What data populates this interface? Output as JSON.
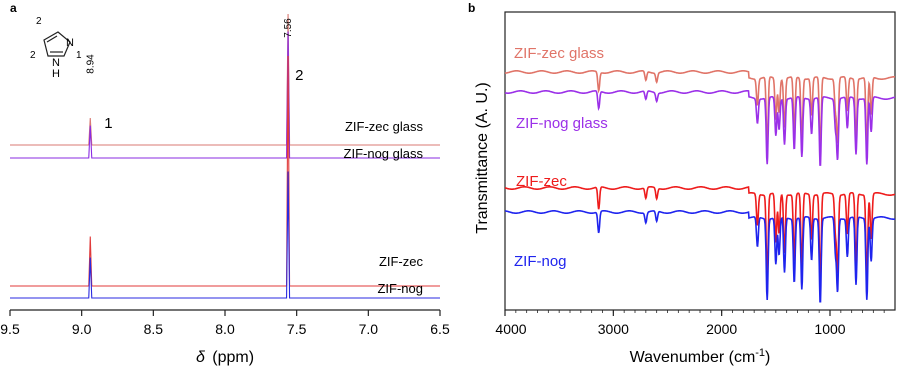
{
  "panels": {
    "a_label": "a",
    "b_label": "b"
  },
  "molecule": {
    "ring_labels": [
      "2",
      "1",
      "2"
    ],
    "nh_label": "N\nH",
    "atom_N": "N",
    "atom_H": "H"
  },
  "chart_data": [
    {
      "type": "line",
      "panel": "a",
      "xlabel_symbol": "δ",
      "xlabel_unit": "(ppm)",
      "ylabel": "",
      "xlim": [
        9.5,
        6.5
      ],
      "x_reversed": true,
      "x_ticks": [
        "9.5",
        "9.0",
        "8.5",
        "8.0",
        "7.5",
        "7.0",
        "6.5"
      ],
      "peak_annotations": [
        {
          "shift": 8.94,
          "value_label": "8.94",
          "number_label": "1"
        },
        {
          "shift": 7.56,
          "value_label": "7.56",
          "number_label": "2"
        }
      ],
      "series": [
        {
          "name": "ZIF-zec glass",
          "color": "#d97a73",
          "peak_heights": [
            0.3,
            0.85
          ]
        },
        {
          "name": "ZIF-nog glass",
          "color": "#8a2be2",
          "peak_heights": [
            0.36,
            0.55
          ]
        },
        {
          "name": "ZIF-zec",
          "color": "#e03a3a",
          "peak_heights": [
            0.55,
            1.0
          ]
        },
        {
          "name": "ZIF-nog",
          "color": "#2a2ae0",
          "peak_heights": [
            0.45,
            0.55
          ]
        }
      ]
    },
    {
      "type": "line",
      "panel": "b",
      "xlabel": "Wavenumber (cm",
      "xlabel_sup": "-1",
      "xlabel_end": ")",
      "ylabel": "Transmittance (A. U.)",
      "xlim": [
        4000,
        400
      ],
      "x_ticks": [
        "4000",
        "3000",
        "2000",
        "1000"
      ],
      "series": [
        {
          "name": "ZIF-zec glass",
          "color": "#e07468"
        },
        {
          "name": "ZIF-nog glass",
          "color": "#9b30e8"
        },
        {
          "name": "ZIF-zec",
          "color": "#ee1c1c"
        },
        {
          "name": "ZIF-nog",
          "color": "#1f24ee"
        }
      ],
      "bands": [
        {
          "x": 3135,
          "depth": 0.25
        },
        {
          "x": 2700,
          "depth": 0.12
        },
        {
          "x": 2600,
          "depth": 0.12
        },
        {
          "x": 1670,
          "depth": 0.35
        },
        {
          "x": 1580,
          "depth": 0.95
        },
        {
          "x": 1500,
          "depth": 0.55
        },
        {
          "x": 1470,
          "depth": 0.45
        },
        {
          "x": 1420,
          "depth": 0.65
        },
        {
          "x": 1330,
          "depth": 0.75
        },
        {
          "x": 1260,
          "depth": 0.85
        },
        {
          "x": 1170,
          "depth": 0.5
        },
        {
          "x": 1090,
          "depth": 1.0
        },
        {
          "x": 950,
          "depth": 0.4
        },
        {
          "x": 930,
          "depth": 0.85
        },
        {
          "x": 840,
          "depth": 0.45
        },
        {
          "x": 760,
          "depth": 0.8
        },
        {
          "x": 660,
          "depth": 0.95
        },
        {
          "x": 620,
          "depth": 0.5
        }
      ]
    }
  ]
}
